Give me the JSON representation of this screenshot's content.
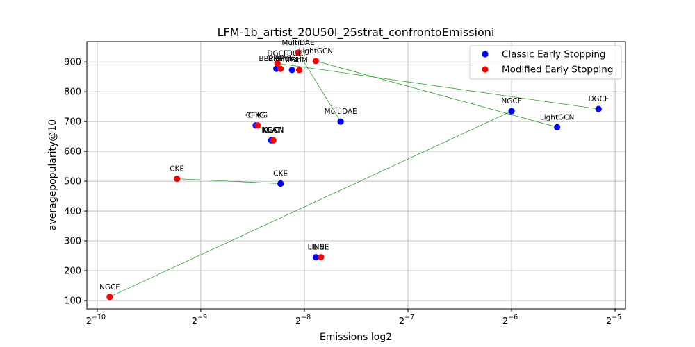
{
  "chart_data": {
    "type": "scatter",
    "title": "LFM-1b_artist_20U50I_25strat_confrontoEmissioni",
    "xlabel": "Emissions log2",
    "ylabel": "averagepopularity@10",
    "x_scale": "log2",
    "x_ticks": [
      {
        "label": "2",
        "sup": "−10"
      },
      {
        "label": "2",
        "sup": "−9"
      },
      {
        "label": "2",
        "sup": "−8"
      },
      {
        "label": "2",
        "sup": "−7"
      },
      {
        "label": "2",
        "sup": "−6"
      },
      {
        "label": "2",
        "sup": "−5"
      }
    ],
    "y_ticks": [
      "100",
      "200",
      "300",
      "400",
      "500",
      "600",
      "700",
      "800",
      "900"
    ],
    "xlim_log2": [
      -10.1,
      -4.9
    ],
    "ylim": [
      72,
      968
    ],
    "grid": true,
    "legend_position": "top-right",
    "colors": {
      "classic": "#0000ff",
      "modified": "#ff0000",
      "line": "#2ca02c"
    },
    "series": [
      {
        "name": "Classic Early Stopping",
        "key": "classic",
        "points": [
          {
            "label": "BPRMF",
            "x_log2": -8.27,
            "y": 877
          },
          {
            "label": "RP3b",
            "x_log2": -8.12,
            "y": 873
          },
          {
            "label": "MultiDAE",
            "x_log2": -7.65,
            "y": 700
          },
          {
            "label": "NGCF",
            "x_log2": -6.0,
            "y": 735
          },
          {
            "label": "LightGCN",
            "x_log2": -5.56,
            "y": 681
          },
          {
            "label": "DGCF",
            "x_log2": -5.16,
            "y": 742
          },
          {
            "label": "CFKG",
            "x_log2": -8.47,
            "y": 687
          },
          {
            "label": "KGAT",
            "x_log2": -8.32,
            "y": 637
          },
          {
            "label": "CKE",
            "x_log2": -8.23,
            "y": 492
          },
          {
            "label": "LINE",
            "x_log2": -7.89,
            "y": 245
          }
        ]
      },
      {
        "name": "Modified Early Stopping",
        "key": "modified",
        "points": [
          {
            "label": "MultiDAE",
            "x_log2": -8.06,
            "y": 931
          },
          {
            "label": "LightGCN",
            "x_log2": -7.89,
            "y": 903
          },
          {
            "label": "DGCF",
            "x_log2": -8.26,
            "y": 895
          },
          {
            "label": "BPRMF",
            "x_log2": -8.23,
            "y": 877
          },
          {
            "label": "SLIM",
            "x_log2": -8.05,
            "y": 873
          },
          {
            "label": "CFKG",
            "x_log2": -8.45,
            "y": 687
          },
          {
            "label": "KGCN",
            "x_log2": -8.3,
            "y": 637
          },
          {
            "label": "CKE",
            "x_log2": -9.23,
            "y": 508
          },
          {
            "label": "LINE",
            "x_log2": -7.84,
            "y": 245
          },
          {
            "label": "NGCF",
            "x_log2": -9.88,
            "y": 112
          }
        ]
      }
    ],
    "connections": [
      {
        "from": "MultiDAE",
        "to": "MultiDAE"
      },
      {
        "from": "LightGCN",
        "to": "LightGCN"
      },
      {
        "from": "DGCF",
        "to": "DGCF"
      },
      {
        "from": "NGCF",
        "to": "NGCF"
      },
      {
        "from": "CKE",
        "to": "CKE"
      }
    ],
    "extra_labels": [
      {
        "text": "BPRMF",
        "x_log2": -8.32,
        "y": 877
      },
      {
        "text": "DGCF",
        "x_log2": -8.07,
        "y": 895
      },
      {
        "text": "RP3b",
        "x_log2": -8.19,
        "y": 877
      },
      {
        "text": "CFKG",
        "x_log2": -8.47,
        "y": 687
      },
      {
        "text": "KGAT",
        "x_log2": -8.32,
        "y": 637
      },
      {
        "text": "KGCN",
        "x_log2": -8.3,
        "y": 637
      },
      {
        "text": "LINE",
        "x_log2": -7.89,
        "y": 245
      }
    ]
  }
}
